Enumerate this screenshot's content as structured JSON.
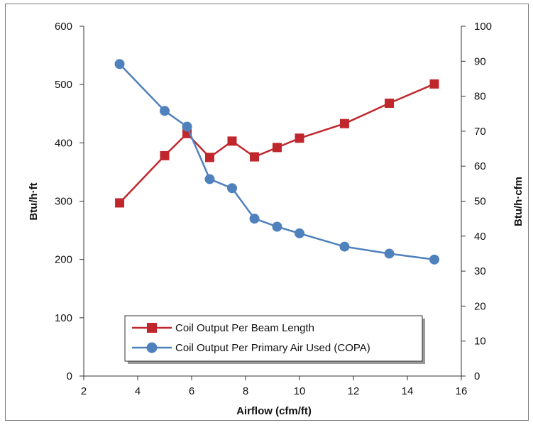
{
  "chart_data": {
    "type": "line",
    "title": "",
    "xlabel": "Airflow (cfm/ft)",
    "ylabel_left": "Btu/h·ft",
    "ylabel_right": "Btu/h·cfm",
    "xlim": [
      2,
      16
    ],
    "ylim_left": [
      0,
      600
    ],
    "ylim_right": [
      0,
      100
    ],
    "x_ticks": [
      2,
      4,
      6,
      8,
      10,
      12,
      14,
      16
    ],
    "y_left_ticks": [
      0,
      100,
      200,
      300,
      400,
      500,
      600
    ],
    "y_right_ticks": [
      0,
      10,
      20,
      30,
      40,
      50,
      60,
      70,
      80,
      90,
      100
    ],
    "grid": false,
    "legend_position": "bottom-center",
    "series": [
      {
        "name": "Coil Output Per Beam Length",
        "axis": "left",
        "marker": "square",
        "color": "#c0272d",
        "x": [
          3.33,
          5.0,
          5.83,
          6.67,
          7.5,
          8.33,
          9.17,
          10.0,
          11.67,
          13.33,
          15.0
        ],
        "values": [
          297,
          378,
          416,
          375,
          403,
          376,
          392,
          408,
          433,
          468,
          501
        ]
      },
      {
        "name": "Coil Output Per Primary Air Used (COPA)",
        "axis": "right",
        "marker": "circle",
        "color": "#4f81bd",
        "x": [
          3.33,
          5.0,
          5.83,
          6.67,
          7.5,
          8.33,
          9.17,
          10.0,
          11.67,
          13.33,
          15.0
        ],
        "values": [
          89.2,
          75.8,
          71.3,
          56.3,
          53.7,
          45.0,
          42.7,
          40.8,
          37.0,
          35.0,
          33.3
        ]
      }
    ]
  }
}
